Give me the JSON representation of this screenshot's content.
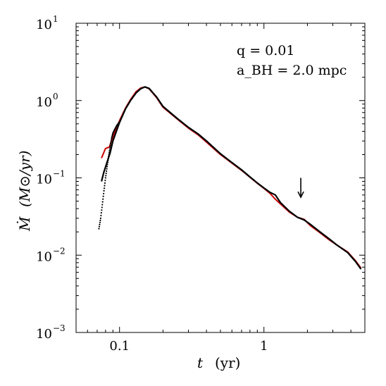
{
  "chart_data": {
    "type": "line",
    "xscale": "log",
    "yscale": "log",
    "xlim": [
      0.05,
      5.0
    ],
    "ylim": [
      0.001,
      10
    ],
    "xlabel": {
      "symbol": "t",
      "unit": "(yr)"
    },
    "ylabel": {
      "symbol": "Ṁ",
      "unit": "(M⊙/yr)"
    },
    "x_ticks": [
      {
        "value": 0.1,
        "label": "0.1"
      },
      {
        "value": 1,
        "label": "1"
      }
    ],
    "y_ticks": [
      {
        "value": 0.001,
        "base": "10",
        "exp": "−3"
      },
      {
        "value": 0.01,
        "base": "10",
        "exp": "−2"
      },
      {
        "value": 0.1,
        "base": "10",
        "exp": "−1"
      },
      {
        "value": 1,
        "base": "10",
        "exp": "0"
      },
      {
        "value": 10,
        "base": "10",
        "exp": "1"
      }
    ],
    "annotations": {
      "line1": "q = 0.01",
      "line2": "a_BH = 2.0 mpc",
      "arrow_x": 1.8,
      "arrow_y_top": 0.1,
      "arrow_y_tip": 0.056
    },
    "series": [
      {
        "color": "#cc0000",
        "style": "solid",
        "x": [
          0.075,
          0.08,
          0.085,
          0.09,
          0.1,
          0.11,
          0.12,
          0.13,
          0.14,
          0.15,
          0.16,
          0.18,
          0.2,
          0.25,
          0.3,
          0.35,
          0.4,
          0.5,
          0.6,
          0.7,
          0.8,
          0.9,
          1.0,
          1.1,
          1.2,
          1.3,
          1.5,
          1.7,
          1.9,
          2.1,
          2.4,
          2.8,
          3.2,
          3.8,
          4.3,
          4.7
        ],
        "y": [
          0.18,
          0.24,
          0.25,
          0.34,
          0.55,
          0.8,
          1.05,
          1.3,
          1.45,
          1.5,
          1.42,
          1.1,
          0.82,
          0.58,
          0.44,
          0.36,
          0.29,
          0.2,
          0.155,
          0.125,
          0.102,
          0.085,
          0.073,
          0.063,
          0.053,
          0.046,
          0.036,
          0.031,
          0.029,
          0.024,
          0.02,
          0.016,
          0.0135,
          0.011,
          0.0085,
          0.0068
        ]
      },
      {
        "color": "#000000",
        "style": "solid",
        "x": [
          0.075,
          0.078,
          0.086,
          0.09,
          0.1,
          0.11,
          0.12,
          0.13,
          0.14,
          0.15,
          0.16,
          0.18,
          0.2,
          0.25,
          0.3,
          0.35,
          0.4,
          0.5,
          0.6,
          0.7,
          0.8,
          0.9,
          1.0,
          1.1,
          1.2,
          1.3,
          1.5,
          1.7,
          1.9,
          2.1,
          2.4,
          2.8,
          3.2,
          3.8,
          4.3,
          4.7
        ],
        "y": [
          0.09,
          0.12,
          0.21,
          0.3,
          0.52,
          0.78,
          1.02,
          1.25,
          1.42,
          1.5,
          1.44,
          1.12,
          0.84,
          0.59,
          0.45,
          0.37,
          0.3,
          0.205,
          0.158,
          0.127,
          0.103,
          0.086,
          0.074,
          0.065,
          0.06,
          0.048,
          0.037,
          0.031,
          0.0285,
          0.025,
          0.0205,
          0.0165,
          0.0135,
          0.0108,
          0.0083,
          0.0066
        ]
      },
      {
        "color": "#000000",
        "style": "dotted",
        "x": [
          0.072,
          0.074,
          0.076,
          0.078,
          0.08,
          0.082,
          0.084,
          0.086,
          0.088,
          0.09,
          0.093,
          0.096,
          0.1
        ],
        "y": [
          0.022,
          0.03,
          0.045,
          0.068,
          0.1,
          0.14,
          0.19,
          0.25,
          0.32,
          0.38,
          0.43,
          0.48,
          0.53
        ]
      }
    ]
  }
}
